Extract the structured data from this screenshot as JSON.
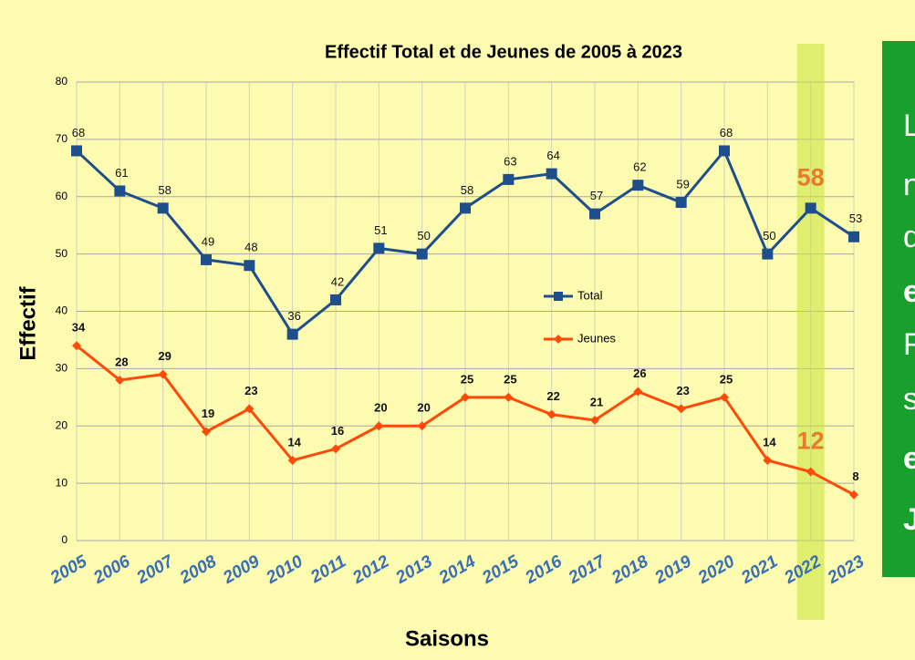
{
  "chart_data": {
    "type": "line",
    "title": "Effectif Total et de Jeunes de 2005 à 2023",
    "x_label": "Saisons",
    "y_label": "Effectif",
    "categories": [
      "2005",
      "2006",
      "2007",
      "2008",
      "2009",
      "2010",
      "2011",
      "2012",
      "2013",
      "2014",
      "2015",
      "2016",
      "2017",
      "2018",
      "2019",
      "2020",
      "2021",
      "2022",
      "2023"
    ],
    "series": [
      {
        "name": "Total",
        "color": "#1f4e8c",
        "marker": "square",
        "values": [
          68,
          61,
          58,
          49,
          48,
          36,
          42,
          51,
          50,
          58,
          63,
          64,
          57,
          62,
          59,
          68,
          50,
          58,
          53
        ]
      },
      {
        "name": "Jeunes",
        "color": "#ff4a0a",
        "marker": "diamond",
        "values": [
          34,
          28,
          29,
          19,
          23,
          14,
          16,
          20,
          20,
          25,
          25,
          22,
          21,
          26,
          23,
          25,
          14,
          12,
          8
        ]
      }
    ],
    "ylim": [
      0,
      80
    ],
    "yticks": [
      0,
      10,
      20,
      30,
      40,
      50,
      60,
      70,
      80
    ],
    "grid": true,
    "highlight": "2022",
    "side_text": [
      "L",
      "n",
      "d",
      "e",
      "F",
      "s",
      "e",
      "J"
    ]
  }
}
